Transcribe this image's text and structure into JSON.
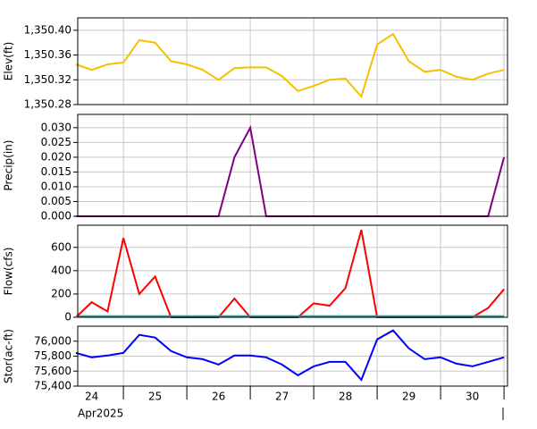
{
  "chart_data": [
    {
      "type": "line",
      "y_label": "Elev(ft)",
      "x": [
        24.25,
        24.5,
        24.75,
        25,
        25.25,
        25.5,
        25.75,
        26,
        26.25,
        26.5,
        26.75,
        27,
        27.25,
        27.5,
        27.75,
        28,
        28.25,
        28.5,
        28.75,
        29,
        29.25,
        29.5,
        29.75,
        30,
        30.25,
        30.5,
        30.75,
        31
      ],
      "series": [
        {
          "color": "#f5c000",
          "values": [
            1350.345,
            1350.336,
            1350.345,
            1350.348,
            1350.384,
            1350.38,
            1350.35,
            1350.345,
            1350.336,
            1350.32,
            1350.339,
            1350.34,
            1350.34,
            1350.326,
            1350.302,
            1350.31,
            1350.32,
            1350.322,
            1350.293,
            1350.377,
            1350.394,
            1350.35,
            1350.333,
            1350.336,
            1350.325,
            1350.32,
            1350.33,
            1350.336
          ]
        }
      ],
      "xlim": [
        24.28,
        31.055
      ],
      "xgrid": [
        25,
        26,
        27,
        28,
        29,
        30,
        31
      ],
      "ylim": [
        1350.28,
        1350.42
      ],
      "yticks": [
        {
          "value": 1350.28,
          "label": "1,350.28"
        },
        {
          "value": 1350.32,
          "label": "1,350.32"
        },
        {
          "value": 1350.36,
          "label": "1,350.36"
        },
        {
          "value": 1350.4,
          "label": "1,350.40"
        }
      ],
      "grid": true
    },
    {
      "type": "line",
      "y_label": "Precip(in)",
      "x": [
        24.25,
        24.5,
        24.75,
        25,
        25.25,
        25.5,
        25.75,
        26,
        26.25,
        26.5,
        26.75,
        27,
        27.25,
        27.5,
        27.75,
        28,
        28.25,
        28.5,
        28.75,
        29,
        29.25,
        29.5,
        29.75,
        30,
        30.25,
        30.5,
        30.75,
        31
      ],
      "series": [
        {
          "color": "#800080",
          "values": [
            0,
            0,
            0,
            0,
            0,
            0,
            0,
            0,
            0,
            0,
            0.02,
            0.03,
            0,
            0,
            0,
            0,
            0,
            0,
            0,
            0,
            0,
            0,
            0,
            0,
            0,
            0,
            0,
            0.02
          ]
        }
      ],
      "xlim": [
        24.28,
        31.055
      ],
      "xgrid": [
        25,
        26,
        27,
        28,
        29,
        30,
        31
      ],
      "ylim": [
        0,
        0.0345
      ],
      "yticks": [
        {
          "value": 0,
          "label": "0.000"
        },
        0.005,
        {
          "value": 0.01,
          "label": "0.010"
        },
        0.015,
        {
          "value": 0.02,
          "label": "0.020"
        },
        0.025,
        {
          "value": 0.03,
          "label": "0.030"
        }
      ],
      "grid": true
    },
    {
      "type": "line",
      "y_label": "Flow(cfs)",
      "x": [
        24.25,
        24.5,
        24.75,
        25,
        25.25,
        25.5,
        25.75,
        26,
        26.25,
        26.5,
        26.75,
        27,
        27.25,
        27.5,
        27.75,
        28,
        28.25,
        28.5,
        28.75,
        29,
        29.25,
        29.5,
        29.75,
        30,
        30.25,
        30.5,
        30.75,
        31
      ],
      "series": [
        {
          "color": "#ff0000",
          "values": [
            0,
            130,
            50,
            680,
            200,
            350,
            0,
            0,
            0,
            0,
            160,
            0,
            0,
            0,
            0,
            120,
            100,
            250,
            750,
            0,
            0,
            0,
            0,
            0,
            0,
            0,
            80,
            240
          ]
        },
        {
          "color": "#20a0a0",
          "values": [
            10,
            10,
            10,
            10,
            10,
            10,
            10,
            10,
            10,
            10,
            10,
            10,
            10,
            10,
            10,
            10,
            10,
            10,
            10,
            10,
            10,
            10,
            10,
            10,
            10,
            10,
            10,
            10
          ]
        }
      ],
      "xlim": [
        24.28,
        31.055
      ],
      "xgrid": [
        25,
        26,
        27,
        28,
        29,
        30,
        31
      ],
      "ylim": [
        0,
        790
      ],
      "yticks": [
        0,
        200,
        400,
        600
      ],
      "grid": true
    },
    {
      "type": "line",
      "y_label": "Stor(ac-ft)",
      "x": [
        24.25,
        24.5,
        24.75,
        25,
        25.25,
        25.5,
        25.75,
        26,
        26.25,
        26.5,
        26.75,
        27,
        27.25,
        27.5,
        27.75,
        28,
        28.25,
        28.5,
        28.75,
        29,
        29.25,
        29.5,
        29.75,
        30,
        30.25,
        30.5,
        30.75,
        31
      ],
      "series": [
        {
          "color": "#0000ff",
          "values": [
            75844,
            75784,
            75808,
            75844,
            76084,
            76048,
            75868,
            75784,
            75760,
            75688,
            75808,
            75808,
            75784,
            75688,
            75544,
            75664,
            75724,
            75724,
            75484,
            76024,
            76144,
            75904,
            75760,
            75784,
            75700,
            75664,
            75724,
            75784
          ]
        }
      ],
      "xlim": [
        24.28,
        31.055
      ],
      "xgrid": [
        25,
        26,
        27,
        28,
        29,
        30,
        31
      ],
      "ylim": [
        75400,
        76200
      ],
      "yticks": [
        {
          "value": 75400,
          "label": "75,400"
        },
        {
          "value": 75600,
          "label": "75,600"
        },
        {
          "value": 75800,
          "label": "75,800"
        },
        {
          "value": 76000,
          "label": "76,000"
        }
      ],
      "grid": true,
      "xticks": [
        {
          "value": 24.5,
          "label": "24"
        },
        {
          "value": 25.5,
          "label": "25"
        },
        {
          "value": 26.5,
          "label": "26"
        },
        {
          "value": 27.5,
          "label": "27"
        },
        {
          "value": 28.5,
          "label": "28"
        },
        {
          "value": 29.5,
          "label": "29"
        },
        {
          "value": 30.5,
          "label": "30"
        }
      ],
      "x_label": "Apr2025"
    }
  ]
}
